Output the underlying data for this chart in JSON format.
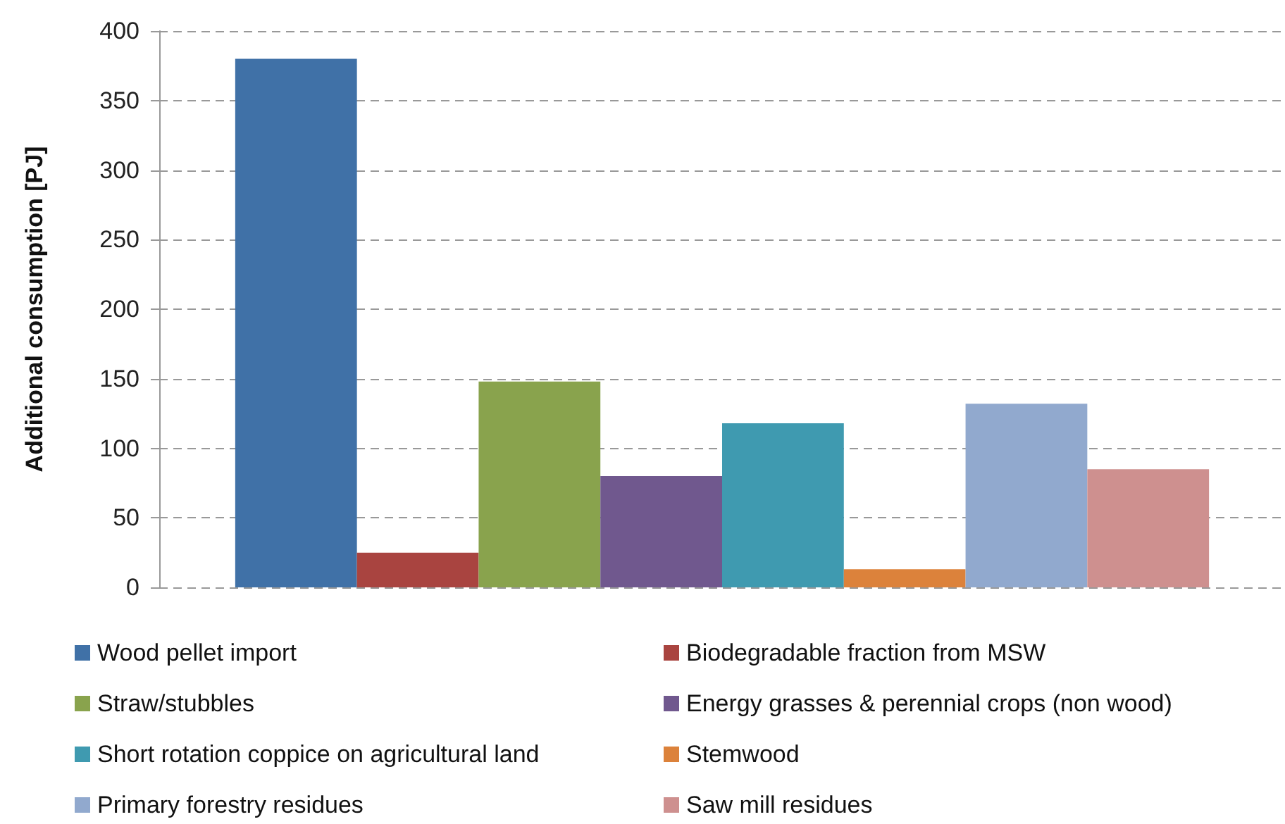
{
  "chart_data": {
    "type": "bar",
    "ylabel": "Additional consumption [PJ]",
    "categories": [
      null
    ],
    "series": [
      {
        "name": "Wood pellet import",
        "color": "#4071a7",
        "values": [
          380
        ]
      },
      {
        "name": "Biodegradable fraction from MSW",
        "color": "#a94440",
        "values": [
          25
        ]
      },
      {
        "name": "Straw/stubbles",
        "color": "#89a34d",
        "values": [
          148
        ]
      },
      {
        "name": "Energy grasses & perennial crops (non wood)",
        "color": "#70588e",
        "values": [
          80
        ]
      },
      {
        "name": "Short rotation coppice on agricultural land",
        "color": "#3f9ab0",
        "values": [
          118
        ]
      },
      {
        "name": "Stemwood",
        "color": "#dc823b",
        "values": [
          13
        ]
      },
      {
        "name": "Primary forestry residues",
        "color": "#91a9ce",
        "values": [
          132
        ]
      },
      {
        "name": "Saw mill residues",
        "color": "#ce908f",
        "values": [
          85
        ]
      }
    ],
    "ylim": [
      0,
      400
    ],
    "yticks": [
      0,
      50,
      100,
      150,
      200,
      250,
      300,
      350,
      400
    ],
    "grid": "y",
    "legend": "bottom"
  }
}
